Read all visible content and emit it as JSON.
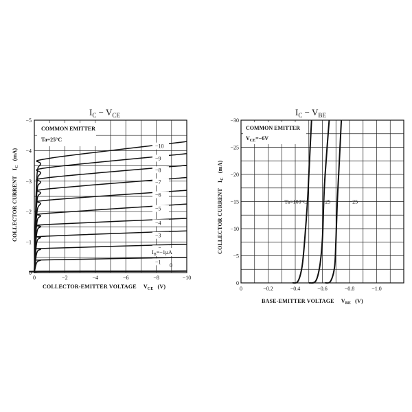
{
  "chart_data": [
    {
      "type": "line",
      "title_main": "I",
      "title_main_sub": "C",
      "title_sep": " − V",
      "title_sep_sub": "CE",
      "xlabel": "COLLECTOR-EMITTER VOLTAGE",
      "xlabel_symbol": "V",
      "xlabel_symbol_sub": "CE",
      "xlabel_unit": "(V)",
      "ylabel": "COLLECTOR CURRENT",
      "ylabel_symbol": "I",
      "ylabel_symbol_sub": "C",
      "ylabel_unit": "(mA)",
      "xlim": [
        0,
        -10
      ],
      "ylim": [
        0,
        -5
      ],
      "x_ticks": [
        0,
        -2,
        -4,
        -6,
        -8,
        -10
      ],
      "x_tick_labels": [
        "0",
        "−2",
        "−4",
        "−6",
        "−8",
        "−10"
      ],
      "y_ticks": [
        0,
        -1,
        -2,
        -3,
        -4,
        -5
      ],
      "y_tick_labels": [
        "0",
        "−1",
        "−2",
        "−3",
        "−4",
        "−5"
      ],
      "notes": [
        "COMMON EMITTER",
        "Ta=25°C"
      ],
      "param_label": "I",
      "param_label_sub": "B",
      "param_label_rest": "=−1μA",
      "series": [
        {
          "name": "0",
          "values": [
            [
              0,
              0
            ],
            [
              -0.15,
              -0.02
            ],
            [
              -0.5,
              -0.04
            ],
            [
              -10,
              -0.05
            ]
          ]
        },
        {
          "name": "−1",
          "values": [
            [
              0,
              0
            ],
            [
              -0.15,
              -0.32
            ],
            [
              -0.4,
              -0.4
            ],
            [
              -1,
              -0.42
            ],
            [
              -10,
              -0.5
            ]
          ]
        },
        {
          "name": "−2",
          "values": [
            [
              0,
              0
            ],
            [
              -0.15,
              -0.62
            ],
            [
              -0.4,
              -0.76
            ],
            [
              -1,
              -0.8
            ],
            [
              -10,
              -0.93
            ]
          ]
        },
        {
          "name": "−3",
          "values": [
            [
              0,
              0
            ],
            [
              -0.15,
              -0.95
            ],
            [
              -0.4,
              -1.14
            ],
            [
              -1,
              -1.2
            ],
            [
              -10,
              -1.37
            ]
          ]
        },
        {
          "name": "−4",
          "values": [
            [
              0,
              0
            ],
            [
              -0.15,
              -1.25
            ],
            [
              -0.4,
              -1.5
            ],
            [
              -1,
              -1.58
            ],
            [
              -10,
              -1.78
            ]
          ]
        },
        {
          "name": "−5",
          "values": [
            [
              0,
              0
            ],
            [
              -0.15,
              -1.55
            ],
            [
              -0.4,
              -1.85
            ],
            [
              -1,
              -1.95
            ],
            [
              -10,
              -2.25
            ]
          ]
        },
        {
          "name": "−6",
          "values": [
            [
              0,
              0
            ],
            [
              -0.15,
              -1.85
            ],
            [
              -0.4,
              -2.25
            ],
            [
              -1,
              -2.38
            ],
            [
              -10,
              -2.7
            ]
          ]
        },
        {
          "name": "−7",
          "values": [
            [
              0,
              0
            ],
            [
              -0.15,
              -2.2
            ],
            [
              -0.4,
              -2.6
            ],
            [
              -1,
              -2.75
            ],
            [
              -10,
              -3.12
            ]
          ]
        },
        {
          "name": "−8",
          "values": [
            [
              0,
              0
            ],
            [
              -0.15,
              -2.5
            ],
            [
              -0.4,
              -2.95
            ],
            [
              -1,
              -3.12
            ],
            [
              -10,
              -3.52
            ]
          ]
        },
        {
          "name": "−9",
          "values": [
            [
              0,
              0
            ],
            [
              -0.15,
              -2.75
            ],
            [
              -0.4,
              -3.25
            ],
            [
              -1,
              -3.45
            ],
            [
              -10,
              -3.9
            ]
          ]
        },
        {
          "name": "−10",
          "values": [
            [
              0,
              0
            ],
            [
              -0.15,
              -3.0
            ],
            [
              -0.4,
              -3.55
            ],
            [
              -1,
              -3.75
            ],
            [
              -10,
              -4.3
            ]
          ]
        }
      ]
    },
    {
      "type": "line",
      "title_main": "I",
      "title_main_sub": "C",
      "title_sep": " − V",
      "title_sep_sub": "BE",
      "xlabel": "BASE-EMITTER VOLTAGE",
      "xlabel_symbol": "V",
      "xlabel_symbol_sub": "BE",
      "xlabel_unit": "(V)",
      "ylabel": "COLLECTOR CURRENT",
      "ylabel_symbol": "I",
      "ylabel_symbol_sub": "C",
      "ylabel_unit": "(mA)",
      "xlim": [
        0,
        -1.2
      ],
      "ylim": [
        0,
        -30
      ],
      "x_ticks": [
        0,
        -0.2,
        -0.4,
        -0.6,
        -0.8,
        -1.0
      ],
      "x_tick_labels": [
        "0",
        "−0.2",
        "−0.4",
        "−0.6",
        "−0.8",
        "−1.0"
      ],
      "y_ticks": [
        0,
        -5,
        -10,
        -15,
        -20,
        -25,
        -30
      ],
      "y_tick_labels": [
        "0",
        "−5",
        "−10",
        "−15",
        "−20",
        "−25",
        "−30"
      ],
      "notes": [
        "COMMON EMITTER",
        "V",
        "CE",
        "=−6V"
      ],
      "series_label_prefix": "Ta=",
      "series": [
        {
          "name": "100°C",
          "values": [
            [
              -0.38,
              0
            ],
            [
              -0.42,
              -0.3
            ],
            [
              -0.45,
              -3
            ],
            [
              -0.47,
              -8
            ],
            [
              -0.49,
              -15
            ],
            [
              -0.5,
              -20
            ],
            [
              -0.52,
              -30
            ]
          ]
        },
        {
          "name": "25",
          "values": [
            [
              -0.5,
              0
            ],
            [
              -0.55,
              -0.3
            ],
            [
              -0.58,
              -3
            ],
            [
              -0.6,
              -8
            ],
            [
              -0.61,
              -15
            ],
            [
              -0.62,
              -20
            ],
            [
              -0.65,
              -30
            ]
          ]
        },
        {
          "name": "−25",
          "values": [
            [
              -0.62,
              0
            ],
            [
              -0.66,
              -0.3
            ],
            [
              -0.69,
              -3
            ],
            [
              -0.7,
              -8
            ],
            [
              -0.71,
              -15
            ],
            [
              -0.72,
              -20
            ],
            [
              -0.74,
              -30
            ]
          ]
        }
      ]
    }
  ]
}
